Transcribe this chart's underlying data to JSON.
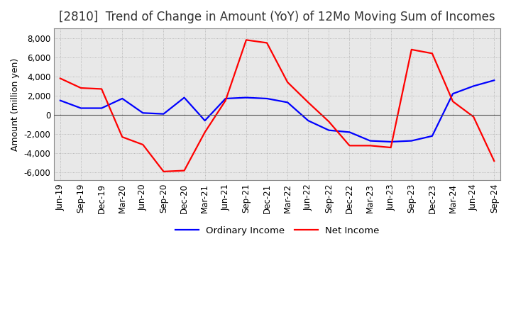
{
  "title": "[2810]  Trend of Change in Amount (YoY) of 12Mo Moving Sum of Incomes",
  "ylabel": "Amount (million yen)",
  "ylim": [
    -6800,
    9000
  ],
  "yticks": [
    -6000,
    -4000,
    -2000,
    0,
    2000,
    4000,
    6000,
    8000
  ],
  "x_labels": [
    "Jun-19",
    "Sep-19",
    "Dec-19",
    "Mar-20",
    "Jun-20",
    "Sep-20",
    "Dec-20",
    "Mar-21",
    "Jun-21",
    "Sep-21",
    "Dec-21",
    "Mar-22",
    "Jun-22",
    "Sep-22",
    "Dec-22",
    "Mar-23",
    "Jun-23",
    "Sep-23",
    "Dec-23",
    "Mar-24",
    "Jun-24",
    "Sep-24"
  ],
  "ordinary_income": [
    1500,
    700,
    700,
    1700,
    200,
    100,
    1800,
    -600,
    1700,
    1800,
    1700,
    1300,
    -600,
    -1600,
    -1800,
    -2700,
    -2800,
    -2700,
    -2200,
    2200,
    3000,
    3600
  ],
  "net_income": [
    3800,
    2800,
    2700,
    -2300,
    -3100,
    -5900,
    -5800,
    -1800,
    1500,
    7800,
    7500,
    3400,
    1300,
    -700,
    -3200,
    -3200,
    -3400,
    6800,
    6400,
    1400,
    -200,
    -4800
  ],
  "ordinary_color": "#0000ff",
  "net_color": "#ff0000",
  "grid_color": "#aaaaaa",
  "plot_bg_color": "#e8e8e8",
  "fig_bg_color": "#ffffff",
  "title_fontsize": 12,
  "axis_fontsize": 9,
  "tick_fontsize": 8.5,
  "legend_fontsize": 9.5
}
